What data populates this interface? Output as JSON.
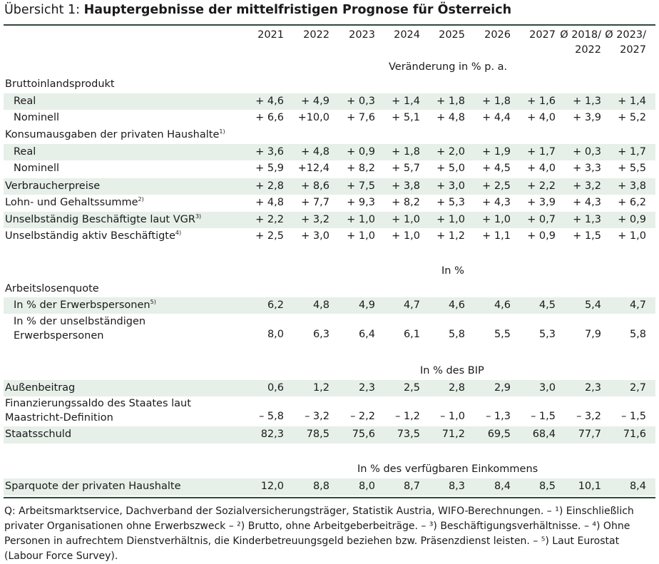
{
  "title": {
    "prefix": "Übersicht 1: ",
    "main": "Hauptergebnisse der mittelfristigen Prognose für Österreich"
  },
  "columns": [
    "2021",
    "2022",
    "2023",
    "2024",
    "2025",
    "2026",
    "2027",
    "Ø 2018/",
    "Ø 2023/"
  ],
  "columns_line2": [
    "",
    "",
    "",
    "",
    "",
    "",
    "",
    "2022",
    "2027"
  ],
  "units": {
    "change": "Veränderung in % p. a.",
    "percent": "In %",
    "percent_gdp": "In % des BIP",
    "percent_income": "In % des verfügbaren Einkommens"
  },
  "rows": {
    "bip": {
      "label": "Bruttoinlandsprodukt"
    },
    "bip_real": {
      "label": "Real",
      "values": [
        "+ 4,6",
        "+ 4,9",
        "+ 0,3",
        "+ 1,4",
        "+ 1,8",
        "+ 1,8",
        "+ 1,6",
        "+ 1,3",
        "+ 1,4"
      ]
    },
    "bip_nom": {
      "label": "Nominell",
      "values": [
        "+ 6,6",
        "+10,0",
        "+ 7,6",
        "+ 5,1",
        "+ 4,8",
        "+ 4,4",
        "+ 4,0",
        "+ 3,9",
        "+ 5,2"
      ]
    },
    "konsum": {
      "label": "Konsumausgaben der privaten Haushalte",
      "fn": "1)"
    },
    "konsum_real": {
      "label": "Real",
      "values": [
        "+ 3,6",
        "+ 4,8",
        "+ 0,9",
        "+ 1,8",
        "+ 2,0",
        "+ 1,9",
        "+ 1,7",
        "+ 0,3",
        "+ 1,7"
      ]
    },
    "konsum_nom": {
      "label": "Nominell",
      "values": [
        "+ 5,9",
        "+12,4",
        "+ 8,2",
        "+ 5,7",
        "+ 5,0",
        "+ 4,5",
        "+ 4,0",
        "+ 3,3",
        "+ 5,5"
      ]
    },
    "vpi": {
      "label": "Verbraucherpreise",
      "values": [
        "+ 2,8",
        "+ 8,6",
        "+ 7,5",
        "+ 3,8",
        "+ 3,0",
        "+ 2,5",
        "+ 2,2",
        "+ 3,2",
        "+ 3,8"
      ]
    },
    "lohn": {
      "label": "Lohn- und Gehaltssumme",
      "fn": "2)",
      "values": [
        "+ 4,8",
        "+ 7,7",
        "+ 9,3",
        "+ 8,2",
        "+ 5,3",
        "+ 4,3",
        "+ 3,9",
        "+ 4,3",
        "+ 6,2"
      ]
    },
    "besch_vgr": {
      "label": "Unselbständig Beschäftigte laut VGR",
      "fn": "3)",
      "values": [
        "+ 2,2",
        "+ 3,2",
        "+ 1,0",
        "+ 1,0",
        "+ 1,0",
        "+ 1,0",
        "+ 0,7",
        "+ 1,3",
        "+ 0,9"
      ]
    },
    "besch_aktiv": {
      "label": "Unselbständig aktiv Beschäftigte",
      "fn": "4)",
      "values": [
        "+ 2,5",
        "+ 3,0",
        "+ 1,0",
        "+ 1,0",
        "+ 1,2",
        "+ 1,1",
        "+ 0,9",
        "+ 1,5",
        "+ 1,0"
      ]
    },
    "alq": {
      "label": "Arbeitslosenquote"
    },
    "alq_eurostat": {
      "label": "In % der Erwerbspersonen",
      "fn": "5)",
      "values": [
        "6,2",
        "4,8",
        "4,9",
        "4,7",
        "4,6",
        "4,6",
        "4,5",
        "5,4",
        "4,7"
      ]
    },
    "alq_nat": {
      "label_line1": "In % der unselbständigen",
      "label_line2": "Erwerbspersonen",
      "values": [
        "8,0",
        "6,3",
        "6,4",
        "6,1",
        "5,8",
        "5,5",
        "5,3",
        "7,9",
        "5,8"
      ]
    },
    "aussen": {
      "label": "Außenbeitrag",
      "values": [
        "0,6",
        "1,2",
        "2,3",
        "2,5",
        "2,8",
        "2,9",
        "3,0",
        "2,3",
        "2,7"
      ]
    },
    "saldo": {
      "label_line1": "Finanzierungssaldo des Staates laut",
      "label_line2": "Maastricht-Definition",
      "values": [
        "– 5,8",
        "– 3,2",
        "– 2,2",
        "– 1,2",
        "– 1,0",
        "– 1,3",
        "– 1,5",
        "– 3,2",
        "– 1,5"
      ]
    },
    "schuld": {
      "label": "Staatsschuld",
      "values": [
        "82,3",
        "78,5",
        "75,6",
        "73,5",
        "71,2",
        "69,5",
        "68,4",
        "77,7",
        "71,6"
      ]
    },
    "sparquote": {
      "label": "Sparquote der privaten Haushalte",
      "values": [
        "12,0",
        "8,8",
        "8,0",
        "8,7",
        "8,3",
        "8,4",
        "8,5",
        "10,1",
        "8,4"
      ]
    }
  },
  "footnote": "Q: Arbeitsmarktservice, Dachverband der Sozialversicherungsträger, Statistik Austria, WIFO-Berechnungen. – ¹) Einschließlich privater Organisationen ohne Erwerbszweck – ²) Brutto, ohne Arbeitgeberbeiträge. – ³) Beschäftigungsverhältnisse. – ⁴) Ohne Personen in aufrechtem Dienstverhältnis, die Kinderbetreuungsgeld beziehen bzw. Präsenzdienst leisten. – ⁵) Laut Eurostat (Labour Force Survey)."
}
